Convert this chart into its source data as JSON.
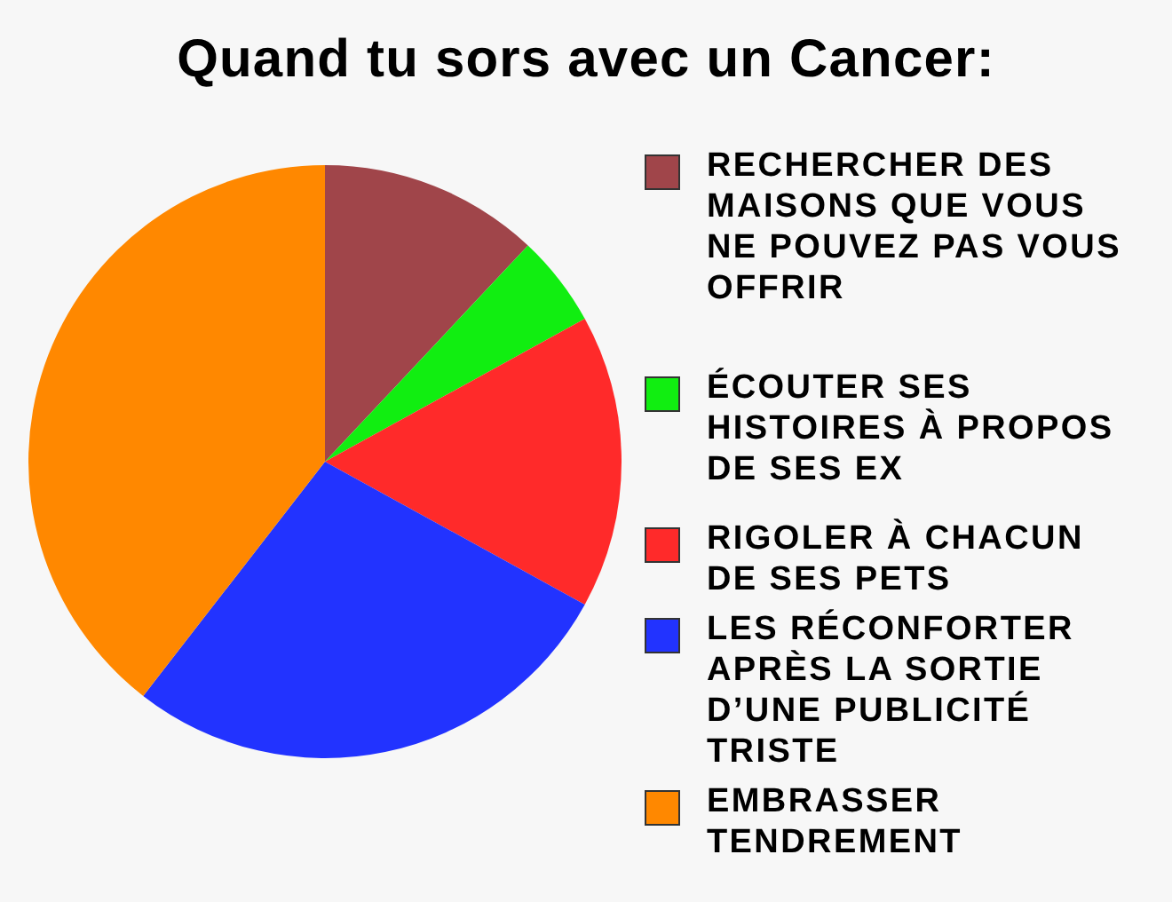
{
  "chart_data": {
    "type": "pie",
    "title": "Quand tu sors avec un Cancer:",
    "categories": [
      "RECHERCHER DES MAISONS QUE VOUS NE POUVEZ PAS VOUS OFFRIR",
      "ÉCOUTER SES HISTOIRES À PROPOS DE SES EX",
      "RIGOLER À CHACUN DE SES PETS",
      "LES RÉCONFORTER APRÈS LA SORTIE D’UNE PUBLICITÉ TRISTE",
      "EMBRASSER TENDREMENT"
    ],
    "values": [
      12,
      5,
      16,
      27.5,
      39.5
    ],
    "colors": [
      "#a0454a",
      "#11ee11",
      "#ff2a2a",
      "#2233ff",
      "#ff8800"
    ],
    "legend": "right"
  }
}
